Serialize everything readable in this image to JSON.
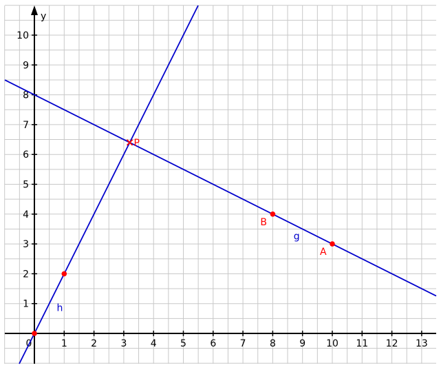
{
  "axes": {
    "x_range": [
      -1,
      13.5
    ],
    "y_range": [
      -1,
      11
    ],
    "x_ticks": [
      0,
      1,
      2,
      3,
      4,
      5,
      6,
      7,
      8,
      9,
      10,
      11,
      12,
      13
    ],
    "y_ticks": [
      1,
      2,
      3,
      4,
      5,
      6,
      7,
      8,
      9,
      10
    ],
    "y_label": "y",
    "origin_label": "0",
    "grid": "on, half-unit spacing"
  },
  "lines": [
    {
      "name": "h",
      "slope": 2,
      "intercept": 0,
      "color": "#0000cc",
      "label_at": [
        0.75,
        0.75
      ]
    },
    {
      "name": "g",
      "slope": -0.5,
      "intercept": 8,
      "color": "#0000cc",
      "label_at": [
        8.7,
        3.15
      ]
    }
  ],
  "points": [
    {
      "name": "",
      "x": 0,
      "y": 0,
      "color": "#ff0000",
      "style": "dot"
    },
    {
      "name": "",
      "x": 1,
      "y": 2,
      "color": "#ff0000",
      "style": "dot"
    },
    {
      "name": "B",
      "x": 8,
      "y": 4,
      "color": "#ff0000",
      "style": "dot"
    },
    {
      "name": "A",
      "x": 10,
      "y": 3,
      "color": "#ff0000",
      "style": "dot"
    },
    {
      "name": "P",
      "x": 3.2,
      "y": 6.4,
      "color": "#ff0000",
      "style": "cross"
    }
  ]
}
